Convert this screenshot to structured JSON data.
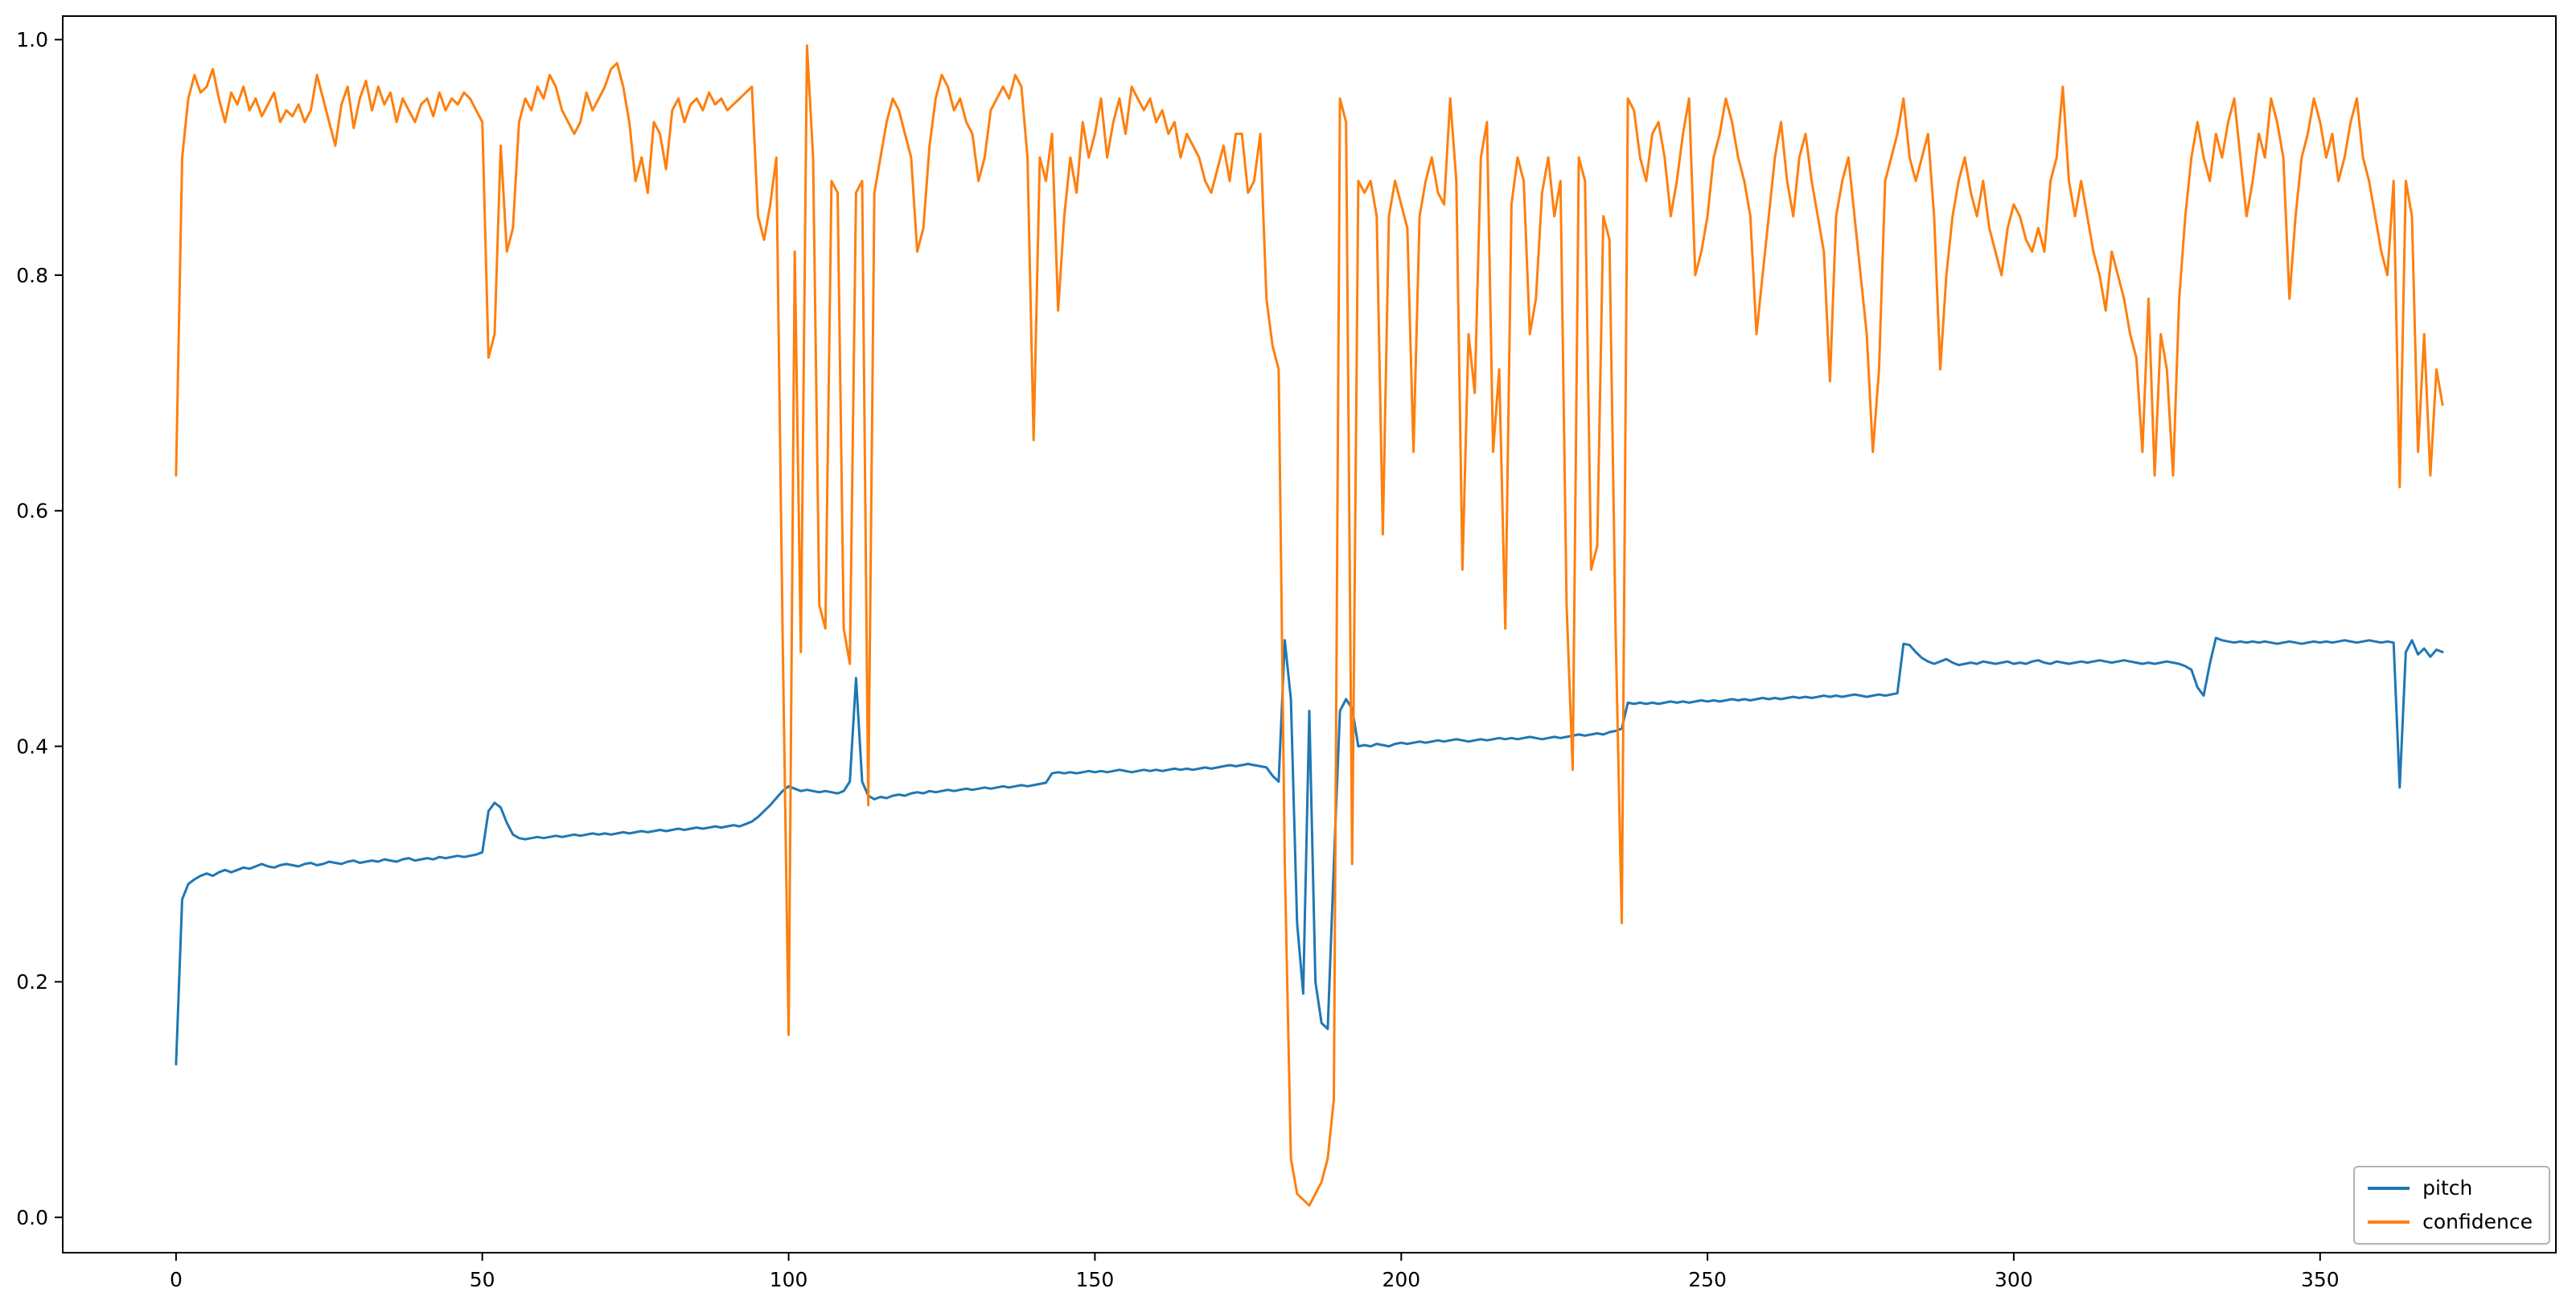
{
  "chart_data": {
    "type": "line",
    "title": "",
    "xlabel": "",
    "ylabel": "",
    "grid": false,
    "legend_position": "lower right",
    "xlim": [
      -18.5,
      388.5
    ],
    "ylim": [
      -0.03,
      1.02
    ],
    "xticks": {
      "values": [
        0,
        50,
        100,
        150,
        200,
        250,
        300,
        350
      ],
      "labels": [
        "0",
        "50",
        "100",
        "150",
        "200",
        "250",
        "300",
        "350"
      ]
    },
    "yticks": {
      "values": [
        0.0,
        0.2,
        0.4,
        0.6,
        0.8,
        1.0
      ],
      "labels": [
        "0.0",
        "0.2",
        "0.4",
        "0.6",
        "0.8",
        "1.0"
      ]
    },
    "x": {
      "start": 0,
      "step": 1,
      "count": 371
    },
    "series": [
      {
        "name": "pitch",
        "color": "#1f77b4",
        "values": [
          0.13,
          0.27,
          0.283,
          0.287,
          0.29,
          0.292,
          0.29,
          0.293,
          0.295,
          0.293,
          0.295,
          0.297,
          0.296,
          0.298,
          0.3,
          0.298,
          0.297,
          0.299,
          0.3,
          0.299,
          0.298,
          0.3,
          0.301,
          0.299,
          0.3,
          0.302,
          0.301,
          0.3,
          0.302,
          0.303,
          0.301,
          0.302,
          0.303,
          0.302,
          0.304,
          0.303,
          0.302,
          0.304,
          0.305,
          0.303,
          0.304,
          0.305,
          0.304,
          0.306,
          0.305,
          0.306,
          0.307,
          0.306,
          0.307,
          0.308,
          0.31,
          0.345,
          0.352,
          0.348,
          0.335,
          0.325,
          0.322,
          0.321,
          0.322,
          0.323,
          0.322,
          0.323,
          0.324,
          0.323,
          0.324,
          0.325,
          0.324,
          0.325,
          0.326,
          0.325,
          0.326,
          0.325,
          0.326,
          0.327,
          0.326,
          0.327,
          0.328,
          0.327,
          0.328,
          0.329,
          0.328,
          0.329,
          0.33,
          0.329,
          0.33,
          0.331,
          0.33,
          0.331,
          0.332,
          0.331,
          0.332,
          0.333,
          0.332,
          0.334,
          0.336,
          0.34,
          0.345,
          0.35,
          0.356,
          0.362,
          0.366,
          0.364,
          0.362,
          0.363,
          0.362,
          0.361,
          0.362,
          0.361,
          0.36,
          0.362,
          0.37,
          0.458,
          0.37,
          0.358,
          0.355,
          0.357,
          0.356,
          0.358,
          0.359,
          0.358,
          0.36,
          0.361,
          0.36,
          0.362,
          0.361,
          0.362,
          0.363,
          0.362,
          0.363,
          0.364,
          0.363,
          0.364,
          0.365,
          0.364,
          0.365,
          0.366,
          0.365,
          0.366,
          0.367,
          0.366,
          0.367,
          0.368,
          0.369,
          0.377,
          0.378,
          0.377,
          0.378,
          0.377,
          0.378,
          0.379,
          0.378,
          0.379,
          0.378,
          0.379,
          0.38,
          0.379,
          0.378,
          0.379,
          0.38,
          0.379,
          0.38,
          0.379,
          0.38,
          0.381,
          0.38,
          0.381,
          0.38,
          0.381,
          0.382,
          0.381,
          0.382,
          0.383,
          0.384,
          0.383,
          0.384,
          0.385,
          0.384,
          0.383,
          0.382,
          0.375,
          0.37,
          0.49,
          0.44,
          0.25,
          0.19,
          0.43,
          0.2,
          0.165,
          0.16,
          0.3,
          0.43,
          0.44,
          0.432,
          0.4,
          0.401,
          0.4,
          0.402,
          0.401,
          0.4,
          0.402,
          0.403,
          0.402,
          0.403,
          0.404,
          0.403,
          0.404,
          0.405,
          0.404,
          0.405,
          0.406,
          0.405,
          0.404,
          0.405,
          0.406,
          0.405,
          0.406,
          0.407,
          0.406,
          0.407,
          0.406,
          0.407,
          0.408,
          0.407,
          0.406,
          0.407,
          0.408,
          0.407,
          0.408,
          0.409,
          0.41,
          0.409,
          0.41,
          0.411,
          0.41,
          0.412,
          0.413,
          0.415,
          0.437,
          0.436,
          0.437,
          0.436,
          0.437,
          0.436,
          0.437,
          0.438,
          0.437,
          0.438,
          0.437,
          0.438,
          0.439,
          0.438,
          0.439,
          0.438,
          0.439,
          0.44,
          0.439,
          0.44,
          0.439,
          0.44,
          0.441,
          0.44,
          0.441,
          0.44,
          0.441,
          0.442,
          0.441,
          0.442,
          0.441,
          0.442,
          0.443,
          0.442,
          0.443,
          0.442,
          0.443,
          0.444,
          0.443,
          0.442,
          0.443,
          0.444,
          0.443,
          0.444,
          0.445,
          0.487,
          0.486,
          0.48,
          0.475,
          0.472,
          0.47,
          0.472,
          0.474,
          0.471,
          0.469,
          0.47,
          0.471,
          0.47,
          0.472,
          0.471,
          0.47,
          0.471,
          0.472,
          0.47,
          0.471,
          0.47,
          0.472,
          0.473,
          0.471,
          0.47,
          0.472,
          0.471,
          0.47,
          0.471,
          0.472,
          0.471,
          0.472,
          0.473,
          0.472,
          0.471,
          0.472,
          0.473,
          0.472,
          0.471,
          0.47,
          0.471,
          0.47,
          0.471,
          0.472,
          0.471,
          0.47,
          0.468,
          0.465,
          0.45,
          0.443,
          0.47,
          0.492,
          0.49,
          0.489,
          0.488,
          0.489,
          0.488,
          0.489,
          0.488,
          0.489,
          0.488,
          0.487,
          0.488,
          0.489,
          0.488,
          0.487,
          0.488,
          0.489,
          0.488,
          0.489,
          0.488,
          0.489,
          0.49,
          0.489,
          0.488,
          0.489,
          0.49,
          0.489,
          0.488,
          0.489,
          0.488,
          0.365,
          0.48,
          0.49,
          0.478,
          0.483,
          0.476,
          0.482,
          0.48
        ]
      },
      {
        "name": "confidence",
        "color": "#ff7f0e",
        "values": [
          0.63,
          0.9,
          0.95,
          0.97,
          0.955,
          0.96,
          0.975,
          0.95,
          0.93,
          0.955,
          0.945,
          0.96,
          0.94,
          0.95,
          0.935,
          0.945,
          0.955,
          0.93,
          0.94,
          0.935,
          0.945,
          0.93,
          0.94,
          0.97,
          0.95,
          0.93,
          0.91,
          0.945,
          0.96,
          0.925,
          0.95,
          0.965,
          0.94,
          0.96,
          0.945,
          0.955,
          0.93,
          0.95,
          0.94,
          0.93,
          0.945,
          0.95,
          0.935,
          0.955,
          0.94,
          0.95,
          0.945,
          0.955,
          0.95,
          0.94,
          0.93,
          0.73,
          0.75,
          0.91,
          0.82,
          0.84,
          0.93,
          0.95,
          0.94,
          0.96,
          0.95,
          0.97,
          0.96,
          0.94,
          0.93,
          0.92,
          0.93,
          0.955,
          0.94,
          0.95,
          0.96,
          0.975,
          0.98,
          0.96,
          0.93,
          0.88,
          0.9,
          0.87,
          0.93,
          0.92,
          0.89,
          0.94,
          0.95,
          0.93,
          0.945,
          0.95,
          0.94,
          0.955,
          0.945,
          0.95,
          0.94,
          0.945,
          0.95,
          0.955,
          0.96,
          0.85,
          0.83,
          0.86,
          0.9,
          0.5,
          0.155,
          0.82,
          0.48,
          0.995,
          0.9,
          0.52,
          0.5,
          0.88,
          0.87,
          0.5,
          0.47,
          0.87,
          0.88,
          0.35,
          0.87,
          0.9,
          0.93,
          0.95,
          0.94,
          0.92,
          0.9,
          0.82,
          0.84,
          0.91,
          0.95,
          0.97,
          0.96,
          0.94,
          0.95,
          0.93,
          0.92,
          0.88,
          0.9,
          0.94,
          0.95,
          0.96,
          0.95,
          0.97,
          0.96,
          0.9,
          0.66,
          0.9,
          0.88,
          0.92,
          0.77,
          0.85,
          0.9,
          0.87,
          0.93,
          0.9,
          0.92,
          0.95,
          0.9,
          0.93,
          0.95,
          0.92,
          0.96,
          0.95,
          0.94,
          0.95,
          0.93,
          0.94,
          0.92,
          0.93,
          0.9,
          0.92,
          0.91,
          0.9,
          0.88,
          0.87,
          0.89,
          0.91,
          0.88,
          0.92,
          0.92,
          0.87,
          0.88,
          0.92,
          0.78,
          0.74,
          0.72,
          0.3,
          0.05,
          0.02,
          0.015,
          0.01,
          0.02,
          0.03,
          0.05,
          0.1,
          0.95,
          0.93,
          0.3,
          0.88,
          0.87,
          0.88,
          0.85,
          0.58,
          0.85,
          0.88,
          0.86,
          0.84,
          0.65,
          0.85,
          0.88,
          0.9,
          0.87,
          0.86,
          0.95,
          0.88,
          0.55,
          0.75,
          0.7,
          0.9,
          0.93,
          0.65,
          0.72,
          0.5,
          0.86,
          0.9,
          0.88,
          0.75,
          0.78,
          0.87,
          0.9,
          0.85,
          0.88,
          0.52,
          0.38,
          0.9,
          0.88,
          0.55,
          0.57,
          0.85,
          0.83,
          0.5,
          0.25,
          0.95,
          0.94,
          0.9,
          0.88,
          0.92,
          0.93,
          0.9,
          0.85,
          0.88,
          0.92,
          0.95,
          0.8,
          0.82,
          0.85,
          0.9,
          0.92,
          0.95,
          0.93,
          0.9,
          0.88,
          0.85,
          0.75,
          0.8,
          0.85,
          0.9,
          0.93,
          0.88,
          0.85,
          0.9,
          0.92,
          0.88,
          0.85,
          0.82,
          0.71,
          0.85,
          0.88,
          0.9,
          0.85,
          0.8,
          0.75,
          0.65,
          0.72,
          0.88,
          0.9,
          0.92,
          0.95,
          0.9,
          0.88,
          0.9,
          0.92,
          0.85,
          0.72,
          0.8,
          0.85,
          0.88,
          0.9,
          0.87,
          0.85,
          0.88,
          0.84,
          0.82,
          0.8,
          0.84,
          0.86,
          0.85,
          0.83,
          0.82,
          0.84,
          0.82,
          0.88,
          0.9,
          0.96,
          0.88,
          0.85,
          0.88,
          0.85,
          0.82,
          0.8,
          0.77,
          0.82,
          0.8,
          0.78,
          0.75,
          0.73,
          0.65,
          0.78,
          0.63,
          0.75,
          0.72,
          0.63,
          0.78,
          0.85,
          0.9,
          0.93,
          0.9,
          0.88,
          0.92,
          0.9,
          0.93,
          0.95,
          0.9,
          0.85,
          0.88,
          0.92,
          0.9,
          0.95,
          0.93,
          0.9,
          0.78,
          0.85,
          0.9,
          0.92,
          0.95,
          0.93,
          0.9,
          0.92,
          0.88,
          0.9,
          0.93,
          0.95,
          0.9,
          0.88,
          0.85,
          0.82,
          0.8,
          0.88,
          0.62,
          0.88,
          0.85,
          0.65,
          0.75,
          0.63,
          0.72,
          0.69
        ]
      }
    ]
  }
}
